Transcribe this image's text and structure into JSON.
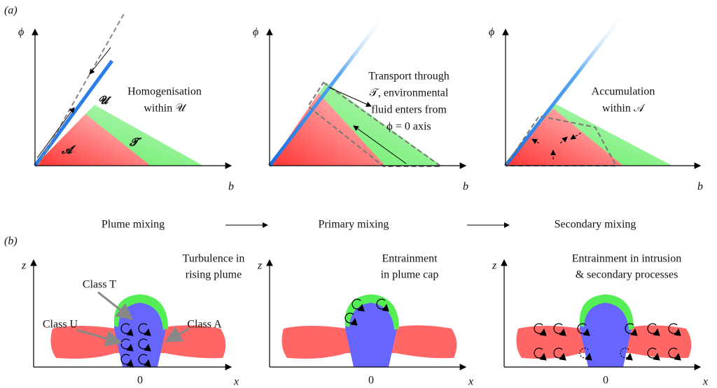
{
  "panel_a": {
    "label": "(a)",
    "plots": [
      {
        "y_axis": "ϕ",
        "x_axis": "b",
        "region_labels": [
          "𝓤",
          "𝓣",
          "𝓐"
        ],
        "annotation": [
          "Homogenisation",
          "within 𝒰"
        ]
      },
      {
        "y_axis": "ϕ",
        "x_axis": "b",
        "annotation": [
          "Transport through",
          "𝒯, environmental",
          "fluid enters from",
          "ϕ = 0 axis"
        ]
      },
      {
        "y_axis": "ϕ",
        "x_axis": "b",
        "annotation": [
          "Accumulation",
          "within 𝒜"
        ]
      }
    ],
    "flow": [
      "Plume mixing",
      "Primary mixing",
      "Secondary mixing"
    ]
  },
  "panel_b": {
    "label": "(b)",
    "plots": [
      {
        "y_axis": "z",
        "x_axis": "x",
        "origin": "0",
        "annotation": [
          "Turbulence in",
          "rising plume"
        ],
        "class_labels": [
          "Class T",
          "Class U",
          "Class A"
        ]
      },
      {
        "y_axis": "z",
        "x_axis": "x",
        "origin": "0",
        "annotation": [
          "Entrainment",
          "in plume cap"
        ]
      },
      {
        "y_axis": "z",
        "x_axis": "x",
        "origin": "0",
        "annotation": [
          "Entrainment in intrusion",
          "& secondary processes"
        ]
      }
    ]
  }
}
